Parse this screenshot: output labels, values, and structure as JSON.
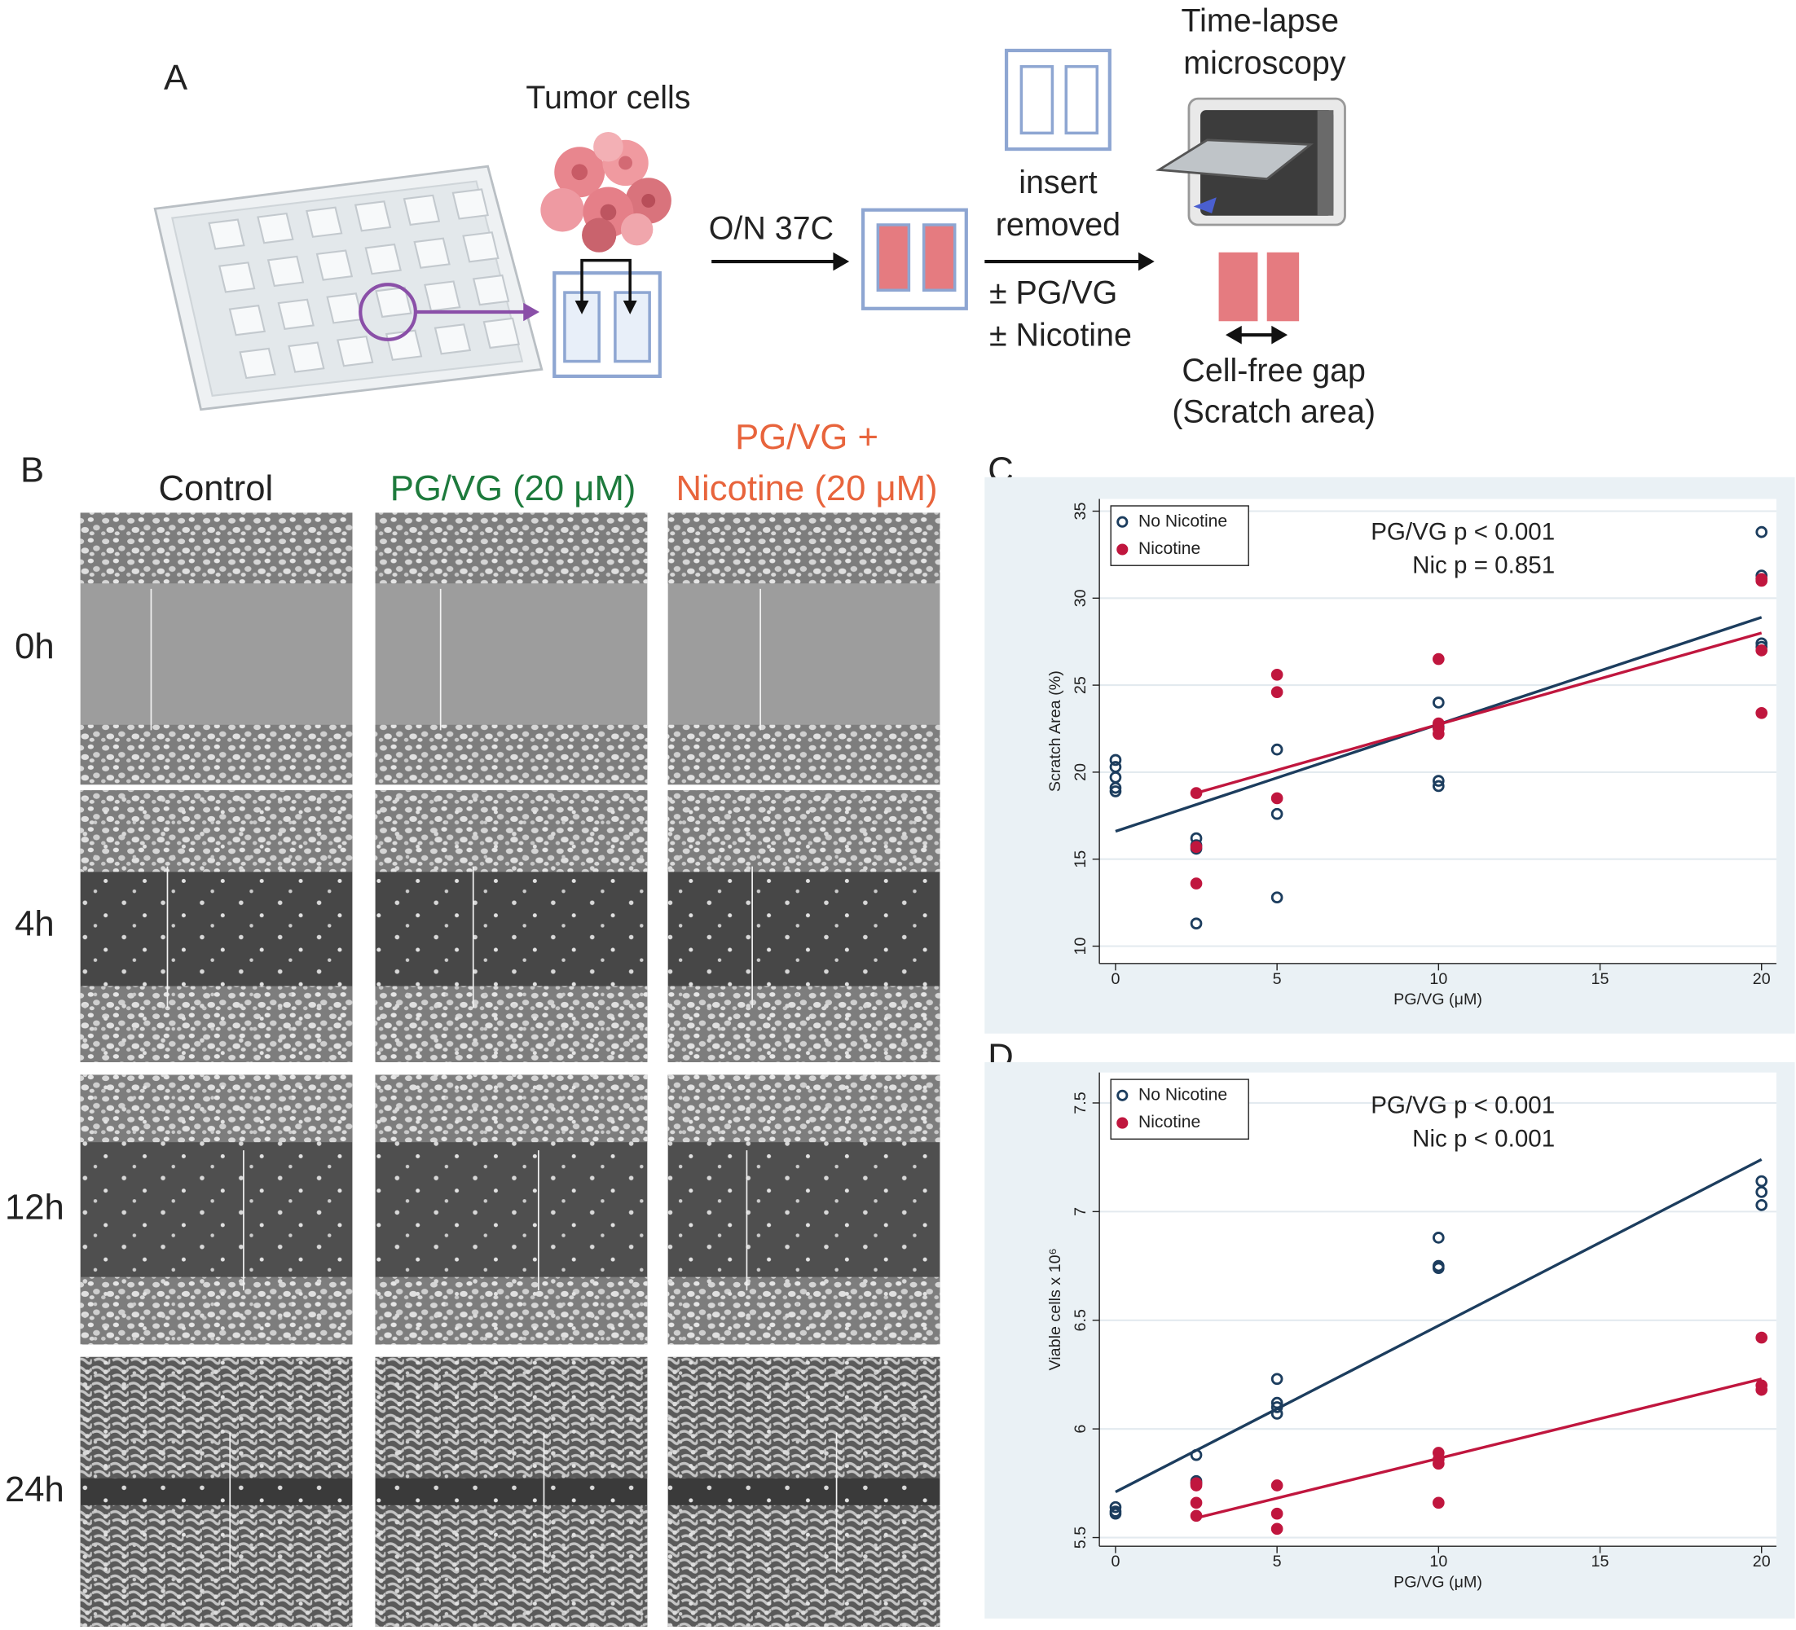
{
  "panel_labels": [
    "A",
    "B",
    "C",
    "D"
  ],
  "diagram": {
    "tumor_cells": "Tumor cells",
    "step1": "O/N 37C",
    "step2": [
      "insert",
      "removed"
    ],
    "treatments": [
      "± PG/VG",
      "± Nicotine"
    ],
    "microscopy": [
      "Time-lapse",
      "microscopy"
    ],
    "gap": [
      "Cell-free gap",
      "(Scratch area)"
    ]
  },
  "micrographs": {
    "columns": [
      [
        "Control"
      ],
      [
        "PG/VG (20 μM)"
      ],
      [
        "PG/VG +",
        "Nicotine (20 μM)"
      ]
    ],
    "rows": [
      "0h",
      "4h",
      "12h",
      "24h"
    ]
  },
  "chart_data": [
    {
      "type": "scatter",
      "xlabel": "PG/VG (μM)",
      "ylabel": "Scratch Area (%)",
      "xlim": [
        -0.5,
        20.46
      ],
      "ylim": [
        9.0,
        35.7
      ],
      "xticks": [
        0,
        5,
        10,
        15,
        20
      ],
      "yticks": [
        10,
        15,
        20,
        25,
        30,
        35
      ],
      "grid": true,
      "legend": "upper left",
      "annotations": [
        "PG/VG p < 0.001",
        "Nic p = 0.851"
      ],
      "series": [
        {
          "name": "No Nicotine",
          "color": "#1c3d5e",
          "marker": "hollow",
          "x": [
            0,
            0,
            0,
            0,
            0,
            2.5,
            2.5,
            2.5,
            2.5,
            5,
            5,
            5,
            10,
            10,
            10,
            10,
            20,
            20,
            20,
            20,
            20
          ],
          "values": [
            20.7,
            20.3,
            19.7,
            19.1,
            18.9,
            16.2,
            15.8,
            15.6,
            11.3,
            21.3,
            17.6,
            12.8,
            24.0,
            22.6,
            19.5,
            19.2,
            33.8,
            31.3,
            31.1,
            27.4,
            27.2
          ],
          "fit": {
            "x": [
              0,
              20
            ],
            "values": [
              16.6,
              28.9
            ]
          }
        },
        {
          "name": "Nicotine",
          "color": "#c0163e",
          "marker": "filled",
          "x": [
            2.5,
            2.5,
            2.5,
            5,
            5,
            5,
            10,
            10,
            10,
            10,
            20,
            20,
            20,
            20
          ],
          "values": [
            18.8,
            15.7,
            13.6,
            25.6,
            24.6,
            18.5,
            26.5,
            22.8,
            22.5,
            22.2,
            31.1,
            31.0,
            27.0,
            23.4
          ],
          "fit": {
            "x": [
              2.5,
              20
            ],
            "values": [
              18.8,
              28.0
            ]
          }
        }
      ]
    },
    {
      "type": "scatter",
      "xlabel": "PG/VG (μM)",
      "ylabel": "Viable cells x 10⁶",
      "xlim": [
        -0.5,
        20.46
      ],
      "ylim": [
        5.46,
        7.64
      ],
      "xticks": [
        0,
        5,
        10,
        15,
        20
      ],
      "yticks": [
        5.5,
        6,
        6.5,
        7,
        7.5
      ],
      "grid": true,
      "legend": "upper left",
      "annotations": [
        "PG/VG p < 0.001",
        "Nic p < 0.001"
      ],
      "series": [
        {
          "name": "No Nicotine",
          "color": "#1c3d5e",
          "marker": "hollow",
          "x": [
            0,
            0,
            0,
            2.5,
            2.5,
            2.5,
            5,
            5,
            5,
            5,
            10,
            10,
            10,
            20,
            20,
            20
          ],
          "values": [
            5.64,
            5.62,
            5.61,
            5.88,
            5.76,
            5.75,
            6.23,
            6.12,
            6.1,
            6.07,
            6.88,
            6.75,
            6.74,
            7.14,
            7.09,
            7.03
          ],
          "fit": {
            "x": [
              0,
              20
            ],
            "values": [
              5.71,
              7.24
            ]
          }
        },
        {
          "name": "Nicotine",
          "color": "#c0163e",
          "marker": "filled",
          "x": [
            2.5,
            2.5,
            2.5,
            2.5,
            5,
            5,
            5,
            10,
            10,
            10,
            10,
            20,
            20,
            20
          ],
          "values": [
            5.75,
            5.74,
            5.66,
            5.6,
            5.74,
            5.61,
            5.54,
            5.89,
            5.86,
            5.84,
            5.66,
            6.42,
            6.2,
            6.18
          ],
          "fit": {
            "x": [
              2.5,
              20
            ],
            "values": [
              5.59,
              6.23
            ]
          }
        }
      ]
    }
  ]
}
